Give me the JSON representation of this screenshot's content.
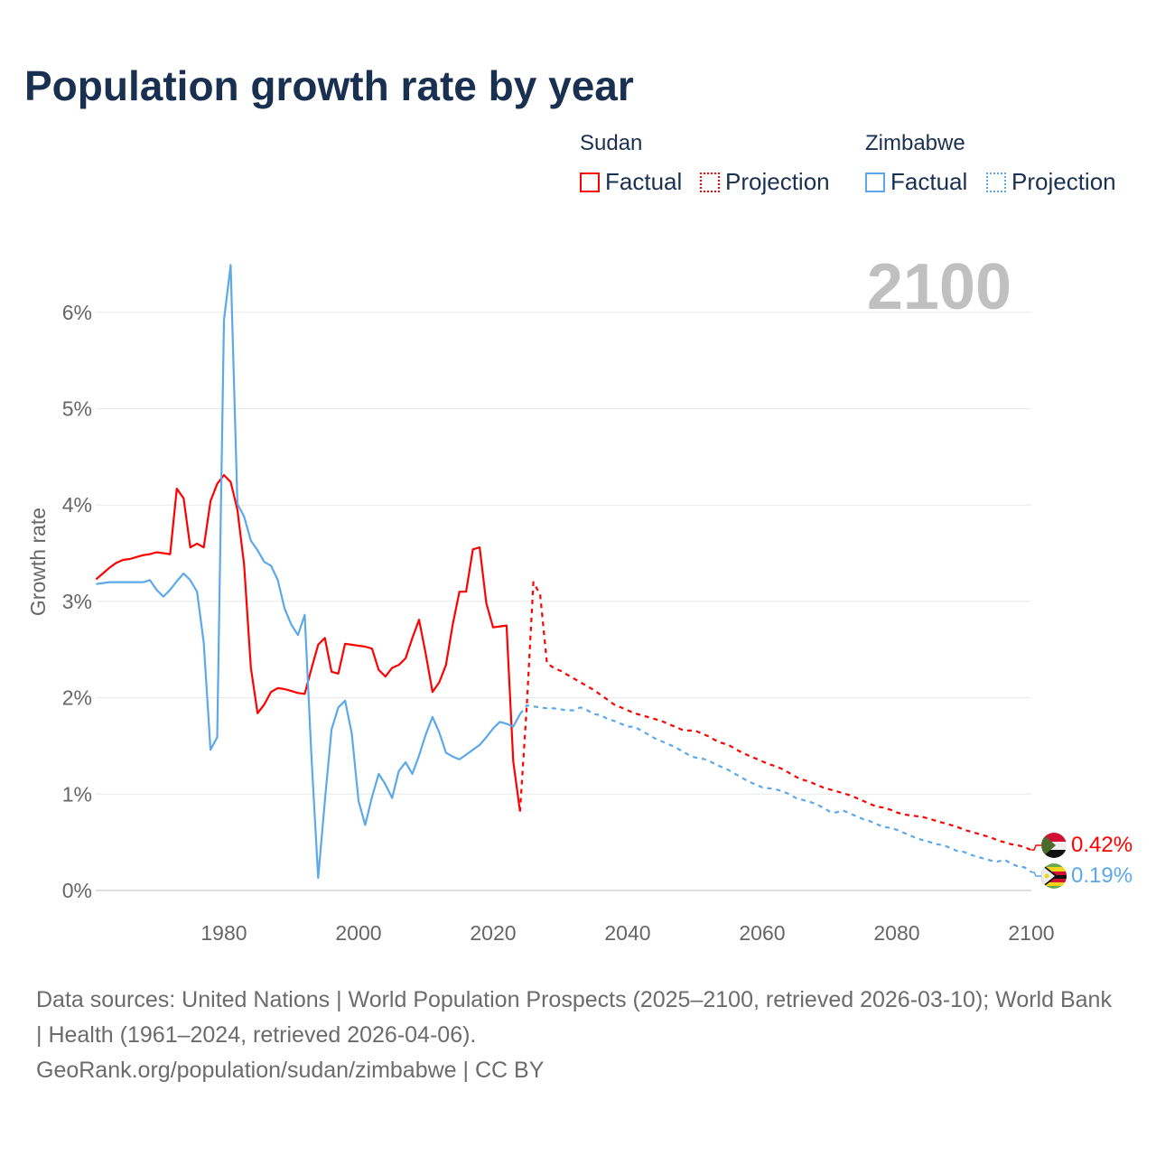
{
  "title": "Population growth rate by year",
  "legend": {
    "groups": [
      {
        "name": "Sudan",
        "factual": "Factual",
        "projection": "Projection",
        "color": "#ff0000"
      },
      {
        "name": "Zimbabwe",
        "factual": "Factual",
        "projection": "Projection",
        "color": "#5ba8eb"
      }
    ]
  },
  "year_display": "2100",
  "end_labels": {
    "sudan": "0.42%",
    "zimbabwe": "0.19%"
  },
  "footer": {
    "line1": "Data sources: United Nations | World Population Prospects (2025–2100, retrieved 2026-03-10); World Bank | Health (1961–2024, retrieved 2026-04-06).",
    "line2": "GeoRank.org/population/sudan/zimbabwe | CC BY"
  },
  "chart_data": {
    "type": "line",
    "title": "Population growth rate by year",
    "xlabel": "",
    "ylabel": "Growth rate",
    "xlim": [
      1961,
      2100
    ],
    "ylim": [
      0,
      6.5
    ],
    "xticks": [
      1980,
      2000,
      2020,
      2040,
      2060,
      2080,
      2100
    ],
    "xtick_labels": [
      "1980",
      "2000",
      "2020",
      "2040",
      "2060",
      "2080",
      "2100"
    ],
    "yticks": [
      0,
      1,
      2,
      3,
      4,
      5,
      6
    ],
    "ytick_labels": [
      "0%",
      "1%",
      "2%",
      "3%",
      "4%",
      "5%",
      "6%"
    ],
    "grid": true,
    "legend_position": "top-right",
    "series": [
      {
        "name": "Sudan Factual",
        "color": "#ff0000",
        "dashed": false,
        "start_year": 1961,
        "values": [
          3.23,
          3.29,
          3.35,
          3.4,
          3.43,
          3.44,
          3.46,
          3.48,
          3.49,
          3.51,
          3.5,
          3.49,
          4.17,
          4.07,
          3.56,
          3.6,
          3.56,
          4.04,
          4.22,
          4.31,
          4.24,
          3.95,
          3.38,
          2.31,
          1.84,
          1.93,
          2.06,
          2.1,
          2.09,
          2.07,
          2.05,
          2.04,
          2.3,
          2.55,
          2.62,
          2.27,
          2.25,
          2.56,
          2.55,
          2.54,
          2.53,
          2.51,
          2.29,
          2.22,
          2.31,
          2.34,
          2.41,
          2.62,
          2.81,
          2.45,
          2.06,
          2.16,
          2.34,
          2.76,
          3.1,
          3.1,
          3.54,
          3.56,
          2.98,
          2.73,
          2.74,
          2.75,
          1.34,
          0.82
        ]
      },
      {
        "name": "Sudan Projection",
        "color": "#ff0000",
        "dashed": true,
        "start_year": 2024,
        "values": [
          0.82,
          1.9,
          3.2,
          3.07,
          2.36,
          2.31,
          2.28,
          2.24,
          2.2,
          2.16,
          2.12,
          2.08,
          2.03,
          1.98,
          1.93,
          1.9,
          1.87,
          1.84,
          1.82,
          1.8,
          1.78,
          1.76,
          1.73,
          1.7,
          1.67,
          1.66,
          1.66,
          1.63,
          1.6,
          1.56,
          1.53,
          1.51,
          1.47,
          1.43,
          1.4,
          1.37,
          1.34,
          1.31,
          1.29,
          1.26,
          1.22,
          1.18,
          1.15,
          1.13,
          1.1,
          1.07,
          1.05,
          1.03,
          1.01,
          0.99,
          0.96,
          0.93,
          0.9,
          0.87,
          0.86,
          0.84,
          0.81,
          0.79,
          0.78,
          0.77,
          0.76,
          0.74,
          0.72,
          0.7,
          0.68,
          0.66,
          0.63,
          0.61,
          0.59,
          0.57,
          0.55,
          0.52,
          0.5,
          0.48,
          0.47,
          0.45,
          0.42
        ]
      },
      {
        "name": "Zimbabwe Factual",
        "color": "#5ba8eb",
        "dashed": false,
        "start_year": 1961,
        "values": [
          3.18,
          3.19,
          3.2,
          3.2,
          3.2,
          3.2,
          3.2,
          3.2,
          3.22,
          3.12,
          3.05,
          3.12,
          3.21,
          3.29,
          3.22,
          3.1,
          2.57,
          1.46,
          1.59,
          5.92,
          6.49,
          4.01,
          3.88,
          3.63,
          3.53,
          3.41,
          3.37,
          3.22,
          2.93,
          2.76,
          2.65,
          2.86,
          1.4,
          0.13,
          0.93,
          1.67,
          1.9,
          1.97,
          1.63,
          0.93,
          0.68,
          0.97,
          1.21,
          1.1,
          0.96,
          1.24,
          1.33,
          1.21,
          1.4,
          1.62,
          1.8,
          1.64,
          1.43,
          1.39,
          1.36,
          1.41,
          1.46,
          1.51,
          1.59,
          1.68,
          1.75,
          1.73,
          1.7,
          1.83
        ]
      },
      {
        "name": "Zimbabwe Projection",
        "color": "#5ba8eb",
        "dashed": true,
        "start_year": 2024,
        "values": [
          1.83,
          1.92,
          1.91,
          1.9,
          1.89,
          1.89,
          1.88,
          1.87,
          1.87,
          1.9,
          1.87,
          1.83,
          1.82,
          1.78,
          1.76,
          1.73,
          1.7,
          1.7,
          1.66,
          1.62,
          1.58,
          1.55,
          1.52,
          1.49,
          1.45,
          1.41,
          1.38,
          1.37,
          1.35,
          1.31,
          1.28,
          1.25,
          1.21,
          1.17,
          1.13,
          1.1,
          1.07,
          1.06,
          1.05,
          1.03,
          1.0,
          0.96,
          0.94,
          0.92,
          0.9,
          0.86,
          0.82,
          0.81,
          0.83,
          0.8,
          0.77,
          0.74,
          0.72,
          0.69,
          0.66,
          0.65,
          0.63,
          0.6,
          0.57,
          0.54,
          0.52,
          0.5,
          0.48,
          0.47,
          0.44,
          0.41,
          0.4,
          0.37,
          0.35,
          0.33,
          0.31,
          0.3,
          0.32,
          0.28,
          0.25,
          0.24,
          0.19
        ]
      }
    ]
  }
}
